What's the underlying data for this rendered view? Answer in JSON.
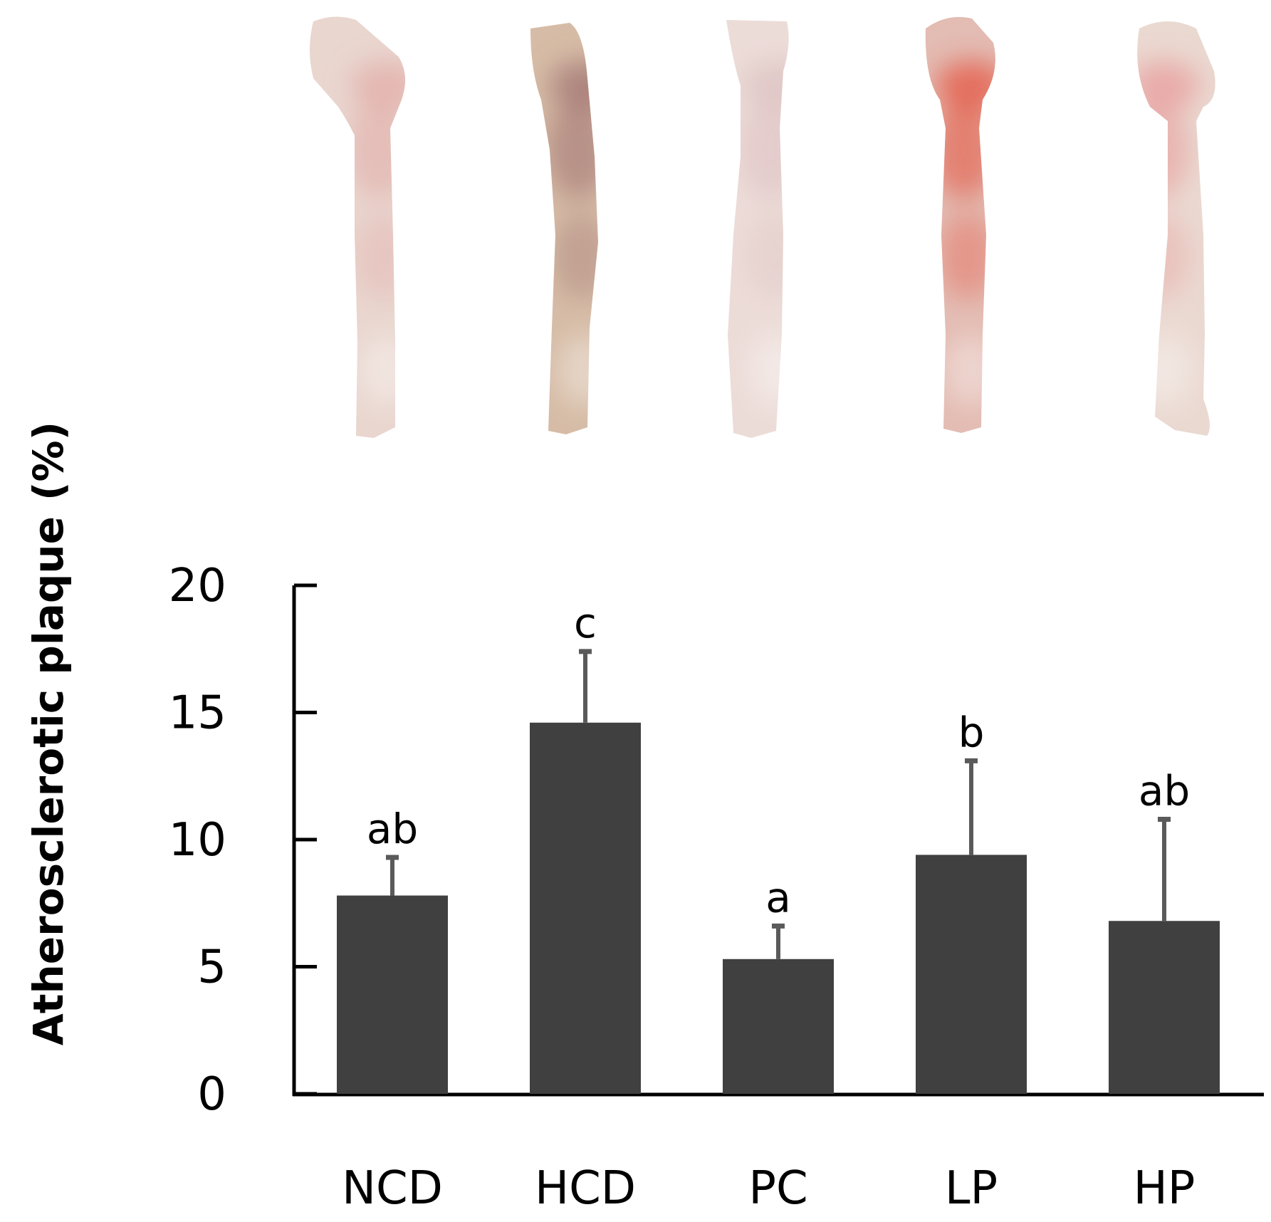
{
  "chart_data": {
    "type": "bar",
    "title": "",
    "xlabel": "",
    "ylabel": "Atherosclerotic plaque",
    "ylabel_unit": "(%)",
    "categories": [
      "NCD",
      "HCD",
      "PC",
      "LP",
      "HP"
    ],
    "values": [
      7.8,
      14.6,
      5.3,
      9.4,
      6.8
    ],
    "errors": [
      1.5,
      2.8,
      1.3,
      3.7,
      4.0
    ],
    "significance": [
      "ab",
      "c",
      "a",
      "b",
      "ab"
    ],
    "ylim": [
      0,
      20
    ],
    "yticks": [
      "0",
      "5",
      "10",
      "15",
      "20"
    ],
    "grid": false,
    "legend": "none",
    "colors": {
      "bar": "#404040",
      "error": "#5a5a5a",
      "axis": "#000000"
    },
    "specimens": [
      {
        "name": "NCD",
        "base": "#e9d6cf",
        "accent": "#e2a9a5"
      },
      {
        "name": "HCD",
        "base": "#d6bca6",
        "accent": "#9e6f6f"
      },
      {
        "name": "PC",
        "base": "#ecdcd8",
        "accent": "#dcc0c1"
      },
      {
        "name": "LP",
        "base": "#e3bcb3",
        "accent": "#e4503b"
      },
      {
        "name": "HP",
        "base": "#ead9d1",
        "accent": "#e89898"
      }
    ]
  }
}
